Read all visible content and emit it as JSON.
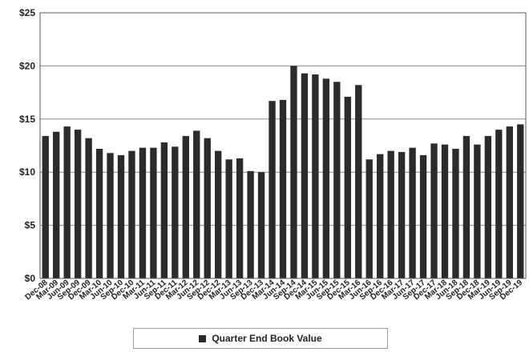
{
  "chart_data": {
    "type": "bar",
    "title": "",
    "xlabel": "",
    "ylabel": "",
    "ylim": [
      0,
      25
    ],
    "y_ticks": [
      "$0",
      "$5",
      "$10",
      "$15",
      "$20",
      "$25"
    ],
    "grid": "horizontal",
    "legend_position": "bottom",
    "bar_color": "#2b2b2b",
    "categories": [
      "Dec-08",
      "Mar-09",
      "Jun-09",
      "Sep-09",
      "Dec-09",
      "Mar-10",
      "Jun-10",
      "Sep-10",
      "Dec-10",
      "Mar-11",
      "Jun-11",
      "Sep-11",
      "Dec-11",
      "Mar-12",
      "Jun-12",
      "Sep-12",
      "Dec-12",
      "Mar-13",
      "Jun-13",
      "Sep-13",
      "Dec-13",
      "Mar-14",
      "Jun-14",
      "Sep-14",
      "Dec-14",
      "Mar-15",
      "Jun-15",
      "Sep-15",
      "Dec-15",
      "Mar-16",
      "Jun-16",
      "Sep-16",
      "Dec-16",
      "Mar-17",
      "Jun-17",
      "Sep-17",
      "Dec-17",
      "Mar-18",
      "Jun-18",
      "Sep-18",
      "Dec-18",
      "Mar-19",
      "Jun-19",
      "Sep-19",
      "Dec-19"
    ],
    "series": [
      {
        "name": "Quarter End Book Value",
        "values": [
          13.4,
          13.8,
          14.3,
          14.0,
          13.2,
          12.2,
          11.8,
          11.6,
          12.0,
          12.3,
          12.3,
          12.8,
          12.4,
          13.4,
          13.9,
          13.2,
          12.0,
          11.2,
          11.3,
          10.1,
          10.0,
          16.7,
          16.8,
          20.0,
          19.3,
          19.2,
          18.8,
          18.5,
          17.1,
          18.2,
          11.2,
          11.7,
          12.0,
          11.9,
          12.3,
          11.6,
          12.7,
          12.6,
          12.2,
          13.4,
          12.6,
          13.4,
          14.0,
          14.3,
          14.5
        ]
      }
    ]
  },
  "legend": {
    "label": "Quarter End Book Value"
  }
}
